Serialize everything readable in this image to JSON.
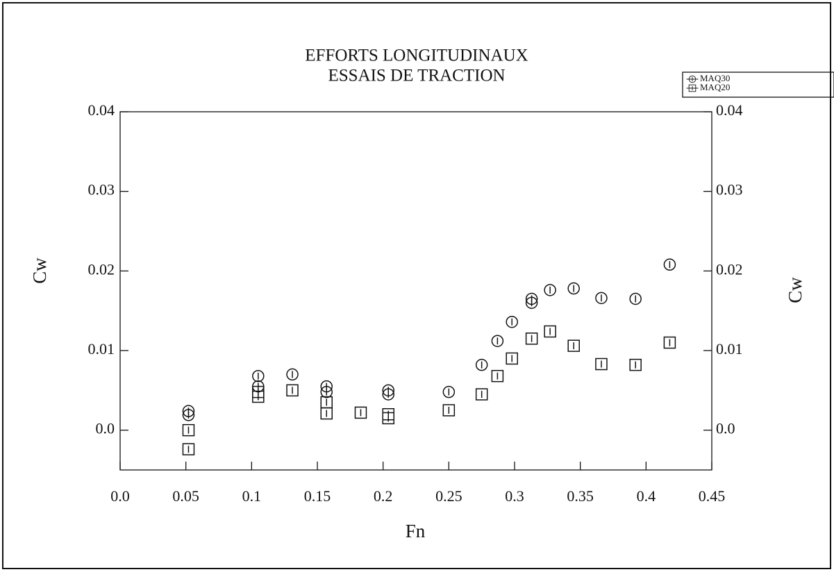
{
  "chart_data": {
    "type": "scatter",
    "title": "EFFORTS LONGITUDINAUX",
    "subtitle": "ESSAIS DE TRACTION",
    "xlabel": "Fn",
    "ylabel": "Cw",
    "y2label": "Cw",
    "xlim": [
      0,
      0.45
    ],
    "xticks": [
      {
        "value": 0,
        "label": "0.0"
      },
      0.05,
      0.1,
      0.15,
      0.2,
      0.25,
      0.3,
      0.35,
      0.4,
      0.45
    ],
    "ylim": [
      -0.005,
      0.04
    ],
    "yticks": [
      {
        "value": 0,
        "label": "0.0"
      },
      0.01,
      0.02,
      0.03,
      0.04
    ],
    "y2lim": [
      -0.005,
      0.04
    ],
    "y2ticks": [
      {
        "value": 0,
        "label": "0.0"
      },
      0.01,
      0.02,
      0.03,
      0.04
    ],
    "legend": "upper right",
    "series": [
      {
        "name": "MAQ30",
        "marker": "circle",
        "color": "#111111",
        "x": [
          0.052,
          0.052,
          0.105,
          0.105,
          0.131,
          0.157,
          0.157,
          0.204,
          0.204,
          0.25,
          0.275,
          0.287,
          0.298,
          0.313,
          0.313,
          0.327,
          0.345,
          0.366,
          0.392,
          0.418
        ],
        "values": [
          0.0024,
          0.0019,
          0.0068,
          0.0055,
          0.007,
          0.0055,
          0.0048,
          0.005,
          0.0045,
          0.0048,
          0.0082,
          0.0112,
          0.0136,
          0.0165,
          0.016,
          0.0176,
          0.0178,
          0.0166,
          0.0165,
          0.0208
        ]
      },
      {
        "name": "MAQ20",
        "marker": "square",
        "color": "#111111",
        "x": [
          0.052,
          0.052,
          0.105,
          0.105,
          0.131,
          0.157,
          0.157,
          0.183,
          0.204,
          0.204,
          0.25,
          0.275,
          0.287,
          0.298,
          0.313,
          0.327,
          0.345,
          0.366,
          0.392,
          0.418
        ],
        "values": [
          0.0,
          -0.0024,
          0.0048,
          0.0042,
          0.005,
          0.0035,
          0.0021,
          0.0022,
          0.002,
          0.0015,
          0.0025,
          0.0045,
          0.0068,
          0.009,
          0.0115,
          0.0124,
          0.0106,
          0.0083,
          0.0082,
          0.011
        ]
      }
    ]
  }
}
